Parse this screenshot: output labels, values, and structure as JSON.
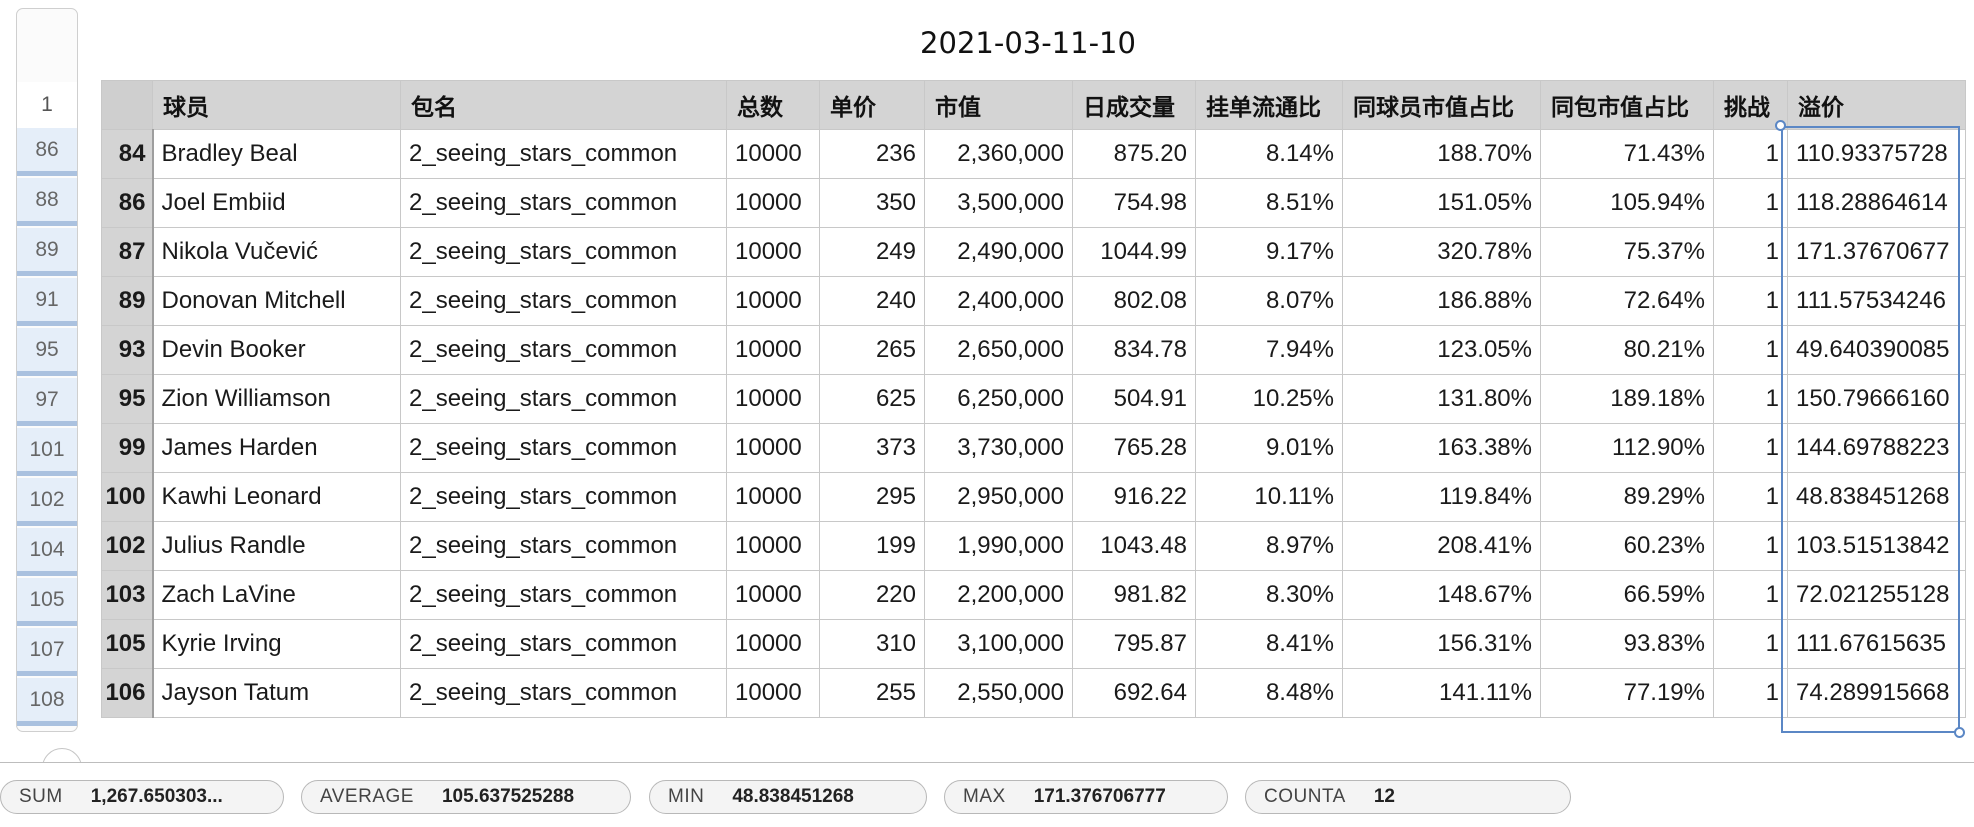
{
  "sheet": {
    "title": "2021-03-11-10",
    "header_row_number": "1",
    "row_numbers": [
      "86",
      "88",
      "89",
      "91",
      "95",
      "97",
      "101",
      "102",
      "104",
      "105",
      "107",
      "108"
    ],
    "columns": [
      "球员",
      "包名",
      "总数",
      "单价",
      "市值",
      "日成交量",
      "挂单流通比",
      "同球员市值占比",
      "同包市值占比",
      "挑战",
      "溢价"
    ],
    "rows": [
      [
        "84",
        "Bradley Beal",
        "2_seeing_stars_common",
        "10000",
        "236",
        "2,360,000",
        "875.20",
        "8.14%",
        "188.70%",
        "71.43%",
        "1",
        "110.93375728"
      ],
      [
        "86",
        "Joel Embiid",
        "2_seeing_stars_common",
        "10000",
        "350",
        "3,500,000",
        "754.98",
        "8.51%",
        "151.05%",
        "105.94%",
        "1",
        "118.28864614"
      ],
      [
        "87",
        "Nikola Vučević",
        "2_seeing_stars_common",
        "10000",
        "249",
        "2,490,000",
        "1044.99",
        "9.17%",
        "320.78%",
        "75.37%",
        "1",
        "171.37670677"
      ],
      [
        "89",
        "Donovan Mitchell",
        "2_seeing_stars_common",
        "10000",
        "240",
        "2,400,000",
        "802.08",
        "8.07%",
        "186.88%",
        "72.64%",
        "1",
        "111.57534246"
      ],
      [
        "93",
        "Devin Booker",
        "2_seeing_stars_common",
        "10000",
        "265",
        "2,650,000",
        "834.78",
        "7.94%",
        "123.05%",
        "80.21%",
        "1",
        "49.640390085"
      ],
      [
        "95",
        "Zion Williamson",
        "2_seeing_stars_common",
        "10000",
        "625",
        "6,250,000",
        "504.91",
        "10.25%",
        "131.80%",
        "189.18%",
        "1",
        "150.79666160"
      ],
      [
        "99",
        "James Harden",
        "2_seeing_stars_common",
        "10000",
        "373",
        "3,730,000",
        "765.28",
        "9.01%",
        "163.38%",
        "112.90%",
        "1",
        "144.69788223"
      ],
      [
        "100",
        "Kawhi Leonard",
        "2_seeing_stars_common",
        "10000",
        "295",
        "2,950,000",
        "916.22",
        "10.11%",
        "119.84%",
        "89.29%",
        "1",
        "48.838451268"
      ],
      [
        "102",
        "Julius Randle",
        "2_seeing_stars_common",
        "10000",
        "199",
        "1,990,000",
        "1043.48",
        "8.97%",
        "208.41%",
        "60.23%",
        "1",
        "103.51513842"
      ],
      [
        "103",
        "Zach LaVine",
        "2_seeing_stars_common",
        "10000",
        "220",
        "2,200,000",
        "981.82",
        "8.30%",
        "148.67%",
        "66.59%",
        "1",
        "72.021255128"
      ],
      [
        "105",
        "Kyrie Irving",
        "2_seeing_stars_common",
        "10000",
        "310",
        "3,100,000",
        "795.87",
        "8.41%",
        "156.31%",
        "93.83%",
        "1",
        "111.67615635"
      ],
      [
        "106",
        "Jayson Tatum",
        "2_seeing_stars_common",
        "10000",
        "255",
        "2,550,000",
        "692.64",
        "8.48%",
        "141.11%",
        "77.19%",
        "1",
        "74.289915668"
      ]
    ]
  },
  "status": {
    "sum_label": "SUM",
    "sum_value": "1,267.650303...",
    "average_label": "AVERAGE",
    "average_value": "105.637525288",
    "min_label": "MIN",
    "min_value": "48.838451268",
    "max_label": "MAX",
    "max_value": "171.376706777",
    "counta_label": "COUNTA",
    "counta_value": "12"
  },
  "colors": {
    "selection": "#5b87c5",
    "header_bg": "#d4d4d4",
    "rownum_bg": "#e5eef9"
  }
}
